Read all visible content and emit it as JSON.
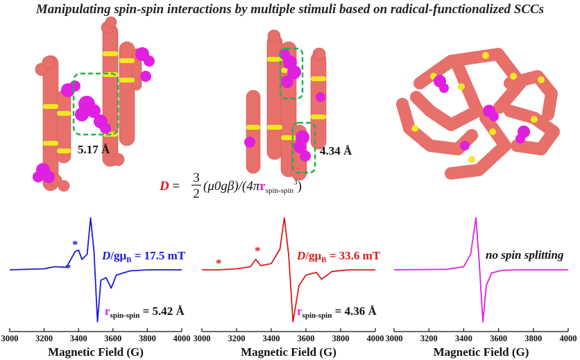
{
  "title": "Manipulating spin-spin interactions by multiple stimuli based on radical-functionalized SCCs",
  "colors": {
    "salmon": "#e8706a",
    "yellow": "#f0e820",
    "magenta": "#e020e0",
    "green_box": "#20b050",
    "blue": "#1a1ad8",
    "red": "#e01818",
    "pink": "#e020e0"
  },
  "structures": [
    {
      "distance": "5.17 Å"
    },
    {
      "distance": "4.34 Å"
    },
    {
      "distance": ""
    }
  ],
  "equation": {
    "lhs": "D",
    "eq": " = ",
    "num": "3",
    "den": "2",
    "mid": "(μ0gβ)/(4π",
    "r": "r",
    "sub": "spin-spin",
    "sup": "3",
    "close": ")"
  },
  "axis": {
    "label": "Magnetic Field (G)",
    "ticks": [
      "3000",
      "3200",
      "3400",
      "3600",
      "3800",
      "4000"
    ]
  },
  "spectra": [
    {
      "color": "#1a1ad8",
      "d_label": {
        "prefix": "D",
        "mid": "/gμ",
        "sub": "B",
        "value": " = 17.5 mT"
      },
      "r_label": {
        "r": "r",
        "sub": "spin-spin",
        "value": " = 5.42 Å"
      },
      "star": "*"
    },
    {
      "color": "#e01818",
      "d_label": {
        "prefix": "D",
        "mid": "/gμ",
        "sub": "B",
        "value": " = 33.6 mT"
      },
      "r_label": {
        "r": "r",
        "sub": "spin-spin",
        "value": " = 4.36 Å"
      },
      "star": "*"
    },
    {
      "color": "#e020e0",
      "note": "no spin splitting"
    }
  ],
  "chart_data": [
    {
      "type": "line",
      "xlabel": "Magnetic Field (G)",
      "xlim": [
        3000,
        4000
      ],
      "series": [
        {
          "x": [
            3000,
            3200,
            3260,
            3330,
            3380,
            3400,
            3420,
            3450,
            3470,
            3490,
            3510,
            3530,
            3560,
            3590,
            3620,
            3700,
            3800,
            4000
          ],
          "y": [
            0,
            0.02,
            0.06,
            0.05,
            0.35,
            0.38,
            0.2,
            0.3,
            1.0,
            0.35,
            -1.0,
            -0.2,
            -0.15,
            -0.35,
            -0.1,
            -0.02,
            0,
            0
          ]
        }
      ]
    },
    {
      "type": "line",
      "xlabel": "Magnetic Field (G)",
      "xlim": [
        3000,
        4000
      ],
      "series": [
        {
          "x": [
            3000,
            3100,
            3200,
            3280,
            3310,
            3340,
            3400,
            3450,
            3475,
            3500,
            3525,
            3560,
            3600,
            3660,
            3690,
            3750,
            3850,
            4000
          ],
          "y": [
            0,
            0,
            0.02,
            0.06,
            0.2,
            0.08,
            0.12,
            0.4,
            1.0,
            0.3,
            -1.0,
            -0.3,
            -0.1,
            -0.05,
            -0.18,
            -0.03,
            0,
            0
          ]
        }
      ]
    },
    {
      "type": "line",
      "xlabel": "Magnetic Field (G)",
      "xlim": [
        3000,
        4000
      ],
      "series": [
        {
          "x": [
            3000,
            3300,
            3400,
            3440,
            3470,
            3490,
            3510,
            3530,
            3560,
            3620,
            3700,
            4000
          ],
          "y": [
            0,
            0.01,
            0.06,
            0.3,
            1.0,
            0.1,
            -1.0,
            -0.3,
            -0.06,
            -0.01,
            0,
            0
          ]
        }
      ]
    }
  ]
}
